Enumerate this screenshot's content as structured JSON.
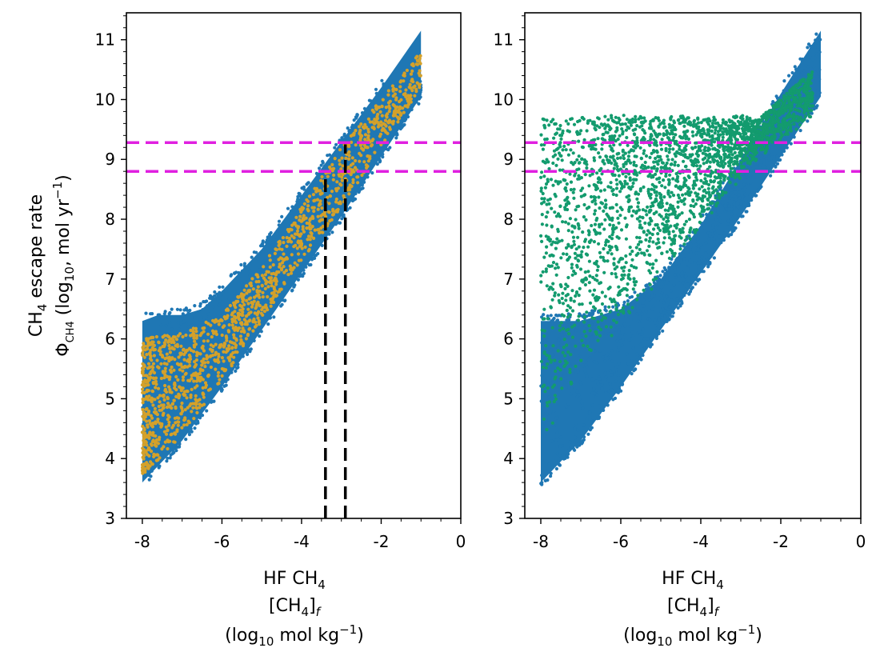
{
  "chart_data": [
    {
      "type": "scatter",
      "panel": "left",
      "xlabel_lines": [
        "HF CH4",
        "[CH4]f",
        "(log10 mol kg−1)"
      ],
      "ylabel_lines": [
        "CH4 escape rate",
        "ΦCH4 (log10, mol yr−1)"
      ],
      "xlim": [
        -8.4,
        0
      ],
      "ylim": [
        3,
        11.45
      ],
      "xticks": [
        -8,
        -6,
        -4,
        -2,
        0
      ],
      "xtick_labels": [
        "-8",
        "-6",
        "-4",
        "-2",
        "0"
      ],
      "yticks": [
        3,
        4,
        5,
        6,
        7,
        8,
        9,
        10,
        11
      ],
      "ytick_labels": [
        "3",
        "4",
        "5",
        "6",
        "7",
        "8",
        "9",
        "10",
        "11"
      ],
      "series": [
        {
          "color": "#1f77b4",
          "region": {
            "x": [
              -8.0,
              -7.6,
              -7.0,
              -6.5,
              -6.0,
              -5.0,
              -4.0,
              -3.0,
              -2.0,
              -1.0,
              -1.0,
              -2.0,
              -3.0,
              -4.0,
              -5.0,
              -6.0,
              -7.0,
              -8.0
            ],
            "y": [
              6.3,
              6.4,
              6.4,
              6.5,
              6.8,
              7.5,
              8.4,
              9.3,
              10.2,
              11.15,
              10.05,
              9.05,
              8.05,
              7.1,
              6.15,
              5.2,
              4.3,
              3.6
            ]
          }
        },
        {
          "color": "#d4a12a",
          "region": {
            "x": [
              -8.0,
              -7.0,
              -6.0,
              -5.0,
              -4.0,
              -3.0,
              -2.0,
              -1.0,
              -1.0,
              -2.0,
              -3.0,
              -4.0,
              -5.0,
              -6.0,
              -7.0,
              -8.0
            ],
            "y": [
              6.0,
              6.1,
              6.4,
              7.2,
              8.2,
              9.2,
              10.0,
              10.8,
              10.2,
              9.2,
              8.2,
              7.3,
              6.3,
              5.3,
              4.4,
              3.7
            ]
          }
        }
      ],
      "hlines": [
        {
          "y": 9.28,
          "color": "#e020e0",
          "style": "dashed"
        },
        {
          "y": 8.8,
          "color": "#e020e0",
          "style": "dashed"
        }
      ],
      "vlines": [
        {
          "x": -3.4,
          "ymin": 3,
          "ymax": 8.7,
          "color": "#000000",
          "style": "dashed"
        },
        {
          "x": -2.9,
          "ymin": 3,
          "ymax": 9.25,
          "color": "#000000",
          "style": "dashed"
        }
      ]
    },
    {
      "type": "scatter",
      "panel": "right",
      "xlabel_lines": [
        "HF CH4",
        "[CH4]f",
        "(log10 mol kg−1)"
      ],
      "xlim": [
        -8.4,
        0
      ],
      "ylim": [
        3,
        11.45
      ],
      "xticks": [
        -8,
        -6,
        -4,
        -2,
        0
      ],
      "xtick_labels": [
        "-8",
        "-6",
        "-4",
        "-2",
        "0"
      ],
      "yticks": [
        3,
        4,
        5,
        6,
        7,
        8,
        9,
        10,
        11
      ],
      "ytick_labels": [
        "3",
        "4",
        "5",
        "6",
        "7",
        "8",
        "9",
        "10",
        "11"
      ],
      "series": [
        {
          "color": "#1f77b4",
          "region": {
            "x": [
              -8.0,
              -7.0,
              -6.0,
              -5.0,
              -4.0,
              -3.0,
              -2.0,
              -1.0,
              -1.0,
              -2.0,
              -3.0,
              -4.0,
              -5.0,
              -6.0,
              -7.0,
              -8.0
            ],
            "y": [
              6.3,
              6.3,
              6.5,
              7.0,
              7.9,
              9.0,
              10.1,
              11.15,
              10.05,
              9.05,
              8.05,
              7.1,
              6.15,
              5.2,
              4.3,
              3.6
            ]
          }
        },
        {
          "color": "#139b6e",
          "region": {
            "x": [
              -8.0,
              -7.0,
              -6.0,
              -5.0,
              -4.0,
              -3.0,
              -2.6,
              -1.2,
              -1.2,
              -2.6,
              -3.2,
              -4.0,
              -5.0,
              -6.0,
              -7.0,
              -8.0
            ],
            "y": [
              9.7,
              9.7,
              9.75,
              9.75,
              9.7,
              9.75,
              9.65,
              10.5,
              9.7,
              9.0,
              8.5,
              7.9,
              7.0,
              6.2,
              5.5,
              4.2
            ]
          }
        }
      ],
      "hlines": [
        {
          "y": 9.28,
          "color": "#e020e0",
          "style": "dashed"
        },
        {
          "y": 8.8,
          "color": "#e020e0",
          "style": "dashed"
        }
      ],
      "vlines": []
    }
  ],
  "labels": {
    "y_line1_main": "CH",
    "y_line1_sub": "4",
    "y_line1_rest": " escape rate",
    "y_line2_main": "Φ",
    "y_line2_sub": "CH4",
    "y_line2_rest": " (log",
    "y_line2_sub2": "10",
    "y_line2_rest2": ", mol yr",
    "y_line2_sup": "−1",
    "y_line2_end": ")",
    "x_line1_main": "HF CH",
    "x_line1_sub": "4",
    "x_line2_main": "[CH",
    "x_line2_sub": "4",
    "x_line2_close": "]",
    "x_line2_sub2": "f",
    "x_line3_main": "(log",
    "x_line3_sub": "10",
    "x_line3_rest": " mol kg",
    "x_line3_sup": "−1",
    "x_line3_end": ")"
  }
}
